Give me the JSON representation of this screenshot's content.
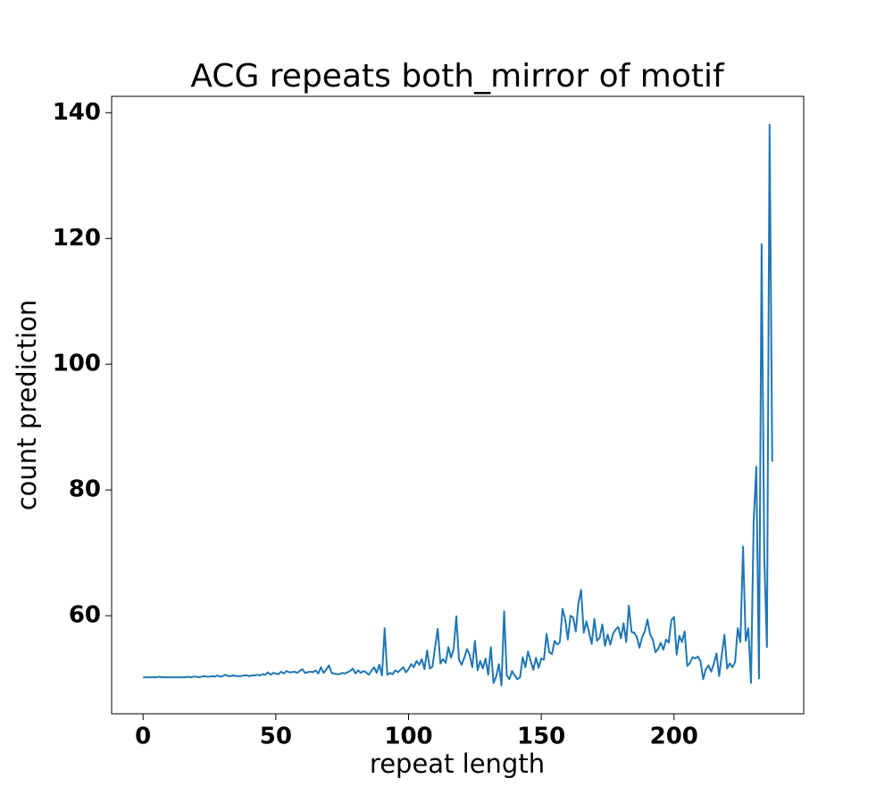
{
  "chart_data": {
    "type": "line",
    "title": "ACG repeats both_mirror of motif",
    "x_label": "repeat length",
    "y_label": "count prediction",
    "color": "#1f77b4",
    "x": [
      0,
      1,
      2,
      3,
      4,
      5,
      6,
      7,
      8,
      9,
      10,
      11,
      12,
      13,
      14,
      15,
      16,
      17,
      18,
      19,
      20,
      21,
      22,
      23,
      24,
      25,
      26,
      27,
      28,
      29,
      30,
      31,
      32,
      33,
      34,
      35,
      36,
      37,
      38,
      39,
      40,
      41,
      42,
      43,
      44,
      45,
      46,
      47,
      48,
      49,
      50,
      51,
      52,
      53,
      54,
      55,
      56,
      57,
      58,
      59,
      60,
      61,
      62,
      63,
      64,
      65,
      66,
      67,
      68,
      69,
      70,
      71,
      72,
      73,
      74,
      75,
      76,
      77,
      78,
      79,
      80,
      81,
      82,
      83,
      84,
      85,
      86,
      87,
      88,
      89,
      90,
      91,
      92,
      93,
      94,
      95,
      96,
      97,
      98,
      99,
      100,
      101,
      102,
      103,
      104,
      105,
      106,
      107,
      108,
      109,
      110,
      111,
      112,
      113,
      114,
      115,
      116,
      117,
      118,
      119,
      120,
      121,
      122,
      123,
      124,
      125,
      126,
      127,
      128,
      129,
      130,
      131,
      132,
      133,
      134,
      135,
      136,
      137,
      138,
      139,
      140,
      141,
      142,
      143,
      144,
      145,
      146,
      147,
      148,
      149,
      150,
      151,
      152,
      153,
      154,
      155,
      156,
      157,
      158,
      159,
      160,
      161,
      162,
      163,
      164,
      165,
      166,
      167,
      168,
      169,
      170,
      171,
      172,
      173,
      174,
      175,
      176,
      177,
      178,
      179,
      180,
      181,
      182,
      183,
      184,
      185,
      186,
      187,
      188,
      189,
      190,
      191,
      192,
      193,
      194,
      195,
      196,
      197,
      198,
      199,
      200,
      201,
      202,
      203,
      204,
      205,
      206,
      207,
      208,
      209,
      210,
      211,
      212,
      213,
      214,
      215,
      216,
      217,
      218,
      219,
      220,
      221,
      222,
      223,
      224,
      225,
      226,
      227,
      228,
      229,
      230,
      231,
      232,
      233,
      234,
      235,
      236,
      237
    ],
    "values": [
      50.2,
      50.2,
      50.2,
      50.2,
      50.2,
      50.2,
      50.3,
      50.2,
      50.2,
      50.2,
      50.2,
      50.2,
      50.2,
      50.2,
      50.2,
      50.2,
      50.2,
      50.3,
      50.2,
      50.3,
      50.3,
      50.2,
      50.3,
      50.4,
      50.3,
      50.3,
      50.4,
      50.3,
      50.5,
      50.3,
      50.4,
      50.6,
      50.4,
      50.4,
      50.5,
      50.4,
      50.4,
      50.4,
      50.5,
      50.5,
      50.4,
      50.5,
      50.5,
      50.6,
      50.5,
      50.7,
      50.6,
      51.0,
      50.6,
      50.9,
      50.8,
      50.7,
      51.1,
      50.8,
      51.2,
      51.0,
      51.0,
      51.1,
      50.9,
      51.2,
      51.5,
      50.9,
      51.0,
      51.1,
      51.0,
      51.3,
      50.8,
      51.8,
      50.9,
      51.4,
      52.1,
      50.9,
      50.8,
      50.7,
      50.7,
      50.9,
      50.8,
      51.0,
      51.2,
      51.6,
      50.8,
      51.3,
      50.9,
      51.2,
      51.0,
      50.6,
      51.2,
      51.8,
      50.9,
      52.2,
      50.5,
      58.0,
      50.6,
      50.9,
      50.7,
      51.3,
      51.0,
      51.4,
      51.8,
      51.0,
      51.5,
      52.3,
      51.8,
      52.8,
      52.2,
      53.1,
      51.5,
      54.5,
      51.6,
      51.9,
      55.0,
      57.9,
      52.4,
      53.1,
      52.5,
      55.0,
      53.3,
      54.8,
      59.9,
      53.0,
      52.2,
      53.3,
      54.7,
      53.8,
      51.8,
      56.0,
      51.3,
      52.8,
      51.6,
      53.2,
      50.6,
      55.0,
      49.3,
      50.3,
      52.3,
      48.9,
      60.7,
      50.5,
      49.9,
      51.2,
      50.5,
      49.9,
      50.2,
      53.4,
      51.8,
      54.3,
      52.8,
      51.4,
      53.3,
      51.7,
      53.2,
      53.0,
      57.1,
      54.2,
      53.9,
      56.0,
      55.4,
      55.8,
      61.1,
      59.5,
      56.2,
      60.0,
      59.7,
      57.5,
      62.0,
      64.1,
      57.3,
      59.1,
      57.3,
      55.5,
      59.5,
      56.0,
      56.5,
      58.6,
      55.2,
      57.0,
      55.4,
      57.1,
      57.8,
      58.2,
      56.4,
      58.8,
      55.8,
      61.6,
      57.4,
      57.3,
      56.6,
      54.9,
      56.6,
      57.5,
      59.4,
      57.0,
      56.2,
      54.2,
      54.7,
      55.7,
      54.6,
      56.2,
      55.7,
      59.3,
      59.8,
      53.8,
      56.8,
      55.8,
      57.5,
      52.0,
      52.5,
      53.4,
      53.2,
      53.5,
      52.7,
      49.9,
      51.5,
      52.1,
      51.1,
      52.4,
      54.0,
      50.4,
      53.8,
      57.0,
      51.6,
      52.4,
      51.8,
      52.6,
      58.0,
      55.8,
      71.0,
      56.0,
      58.0,
      49.3,
      75.0,
      83.7,
      50.0,
      119.1,
      69.2,
      55.0,
      138.1,
      84.5
    ],
    "xlim": [
      -11.85,
      248.85
    ],
    "xticks": [
      0,
      50,
      100,
      150,
      200
    ],
    "ylim": [
      44.4,
      142.6
    ],
    "yticks": [
      60,
      80,
      100,
      120,
      140
    ]
  }
}
